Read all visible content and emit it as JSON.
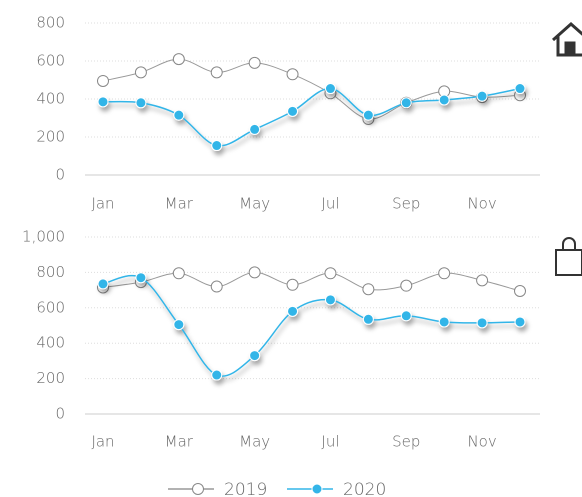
{
  "chart_data": [
    {
      "type": "line",
      "categories": [
        "Jan",
        null,
        "Mar",
        null,
        "May",
        null,
        "Jul",
        null,
        "Sep",
        null,
        "Nov",
        null
      ],
      "series": [
        {
          "name": "2019",
          "color": "#999999",
          "values": [
            495,
            540,
            610,
            540,
            590,
            530,
            430,
            295,
            380,
            440,
            410,
            420
          ]
        },
        {
          "name": "2020",
          "color": "#33b5e8",
          "values": [
            385,
            380,
            315,
            155,
            240,
            335,
            455,
            315,
            380,
            395,
            415,
            455
          ]
        }
      ],
      "ylim": [
        0,
        800
      ],
      "yticks": [
        0,
        200,
        400,
        600,
        800
      ],
      "grid": true
    },
    {
      "type": "line",
      "categories": [
        "Jan",
        null,
        "Mar",
        null,
        "May",
        null,
        "Jul",
        null,
        "Sep",
        null,
        "Nov",
        null
      ],
      "series": [
        {
          "name": "2019",
          "color": "#999999",
          "values": [
            715,
            745,
            795,
            720,
            800,
            730,
            795,
            705,
            725,
            795,
            755,
            695
          ]
        },
        {
          "name": "2020",
          "color": "#33b5e8",
          "values": [
            735,
            770,
            505,
            220,
            330,
            580,
            645,
            535,
            555,
            520,
            515,
            520
          ]
        }
      ],
      "ylim": [
        0,
        1000
      ],
      "yticks": [
        0,
        200,
        400,
        600,
        800,
        {
          "value": 1000,
          "label": "1,000"
        }
      ],
      "grid": true
    }
  ]
}
